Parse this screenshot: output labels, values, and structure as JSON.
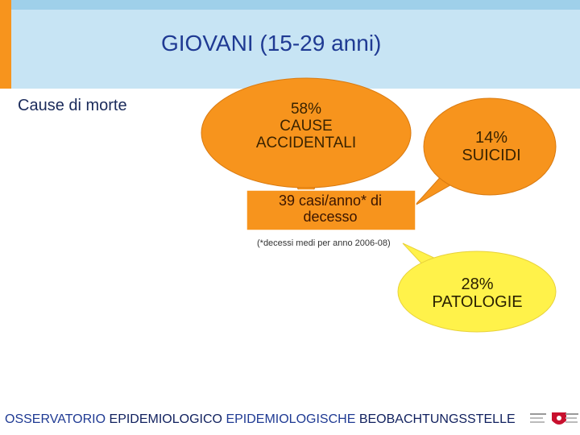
{
  "header": {
    "title": "GIOVANI (15-29 anni)"
  },
  "subtitle": "Cause di morte",
  "bubbles": {
    "accidental": {
      "percent": "58%",
      "label_line1": "CAUSE",
      "label_line2": "ACCIDENTALI",
      "color": "#f7941d"
    },
    "suicide": {
      "percent": "14%",
      "label": "SUICIDI",
      "color": "#f7941d"
    },
    "disease": {
      "percent": "28%",
      "label": "PATOLOGIE",
      "color": "#fff24a"
    }
  },
  "center_box": {
    "line1": "39 casi/anno* di",
    "line2": "decesso",
    "color": "#f7941d"
  },
  "note": "(*decessi medi per anno 2006-08)",
  "footer": {
    "part1": "OSSERVATORIO ",
    "part2": "EPIDEMIOLOGICO ",
    "part3": "EPIDEMIOLOGISCHE ",
    "part4": "BEOBACHTUNGSSTELLE"
  },
  "colors": {
    "header_band": "#c7e4f4",
    "header_accent": "#f7941d",
    "title": "#1f3a93"
  }
}
